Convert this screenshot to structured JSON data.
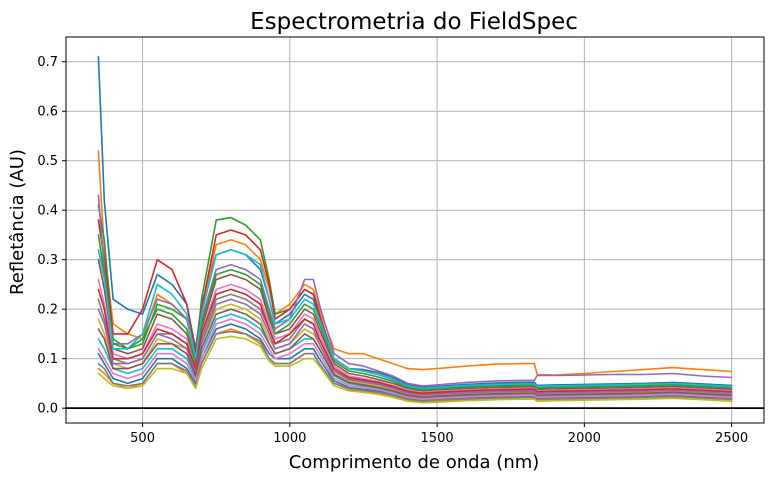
{
  "chart_data": {
    "type": "line",
    "title": "Espectrometria do FieldSpec",
    "xlabel": "Comprimento de onda (nm)",
    "ylabel": "Refletância (AU)",
    "xlim": [
      240,
      2610
    ],
    "ylim": [
      -0.03,
      0.75
    ],
    "xticks": [
      500,
      1000,
      1500,
      2000,
      2500
    ],
    "yticks": [
      0.0,
      0.1,
      0.2,
      0.3,
      0.4,
      0.5,
      0.6,
      0.7
    ],
    "xtick_labels": [
      "500",
      "1000",
      "1500",
      "2000",
      "2500"
    ],
    "ytick_labels": [
      "0.0",
      "0.1",
      "0.2",
      "0.3",
      "0.4",
      "0.5",
      "0.6",
      "0.7"
    ],
    "grid": true,
    "horizontal_reference_line": {
      "y": 0.0,
      "color": "#000000"
    },
    "colors": [
      "#1f77b4",
      "#ff7f0e",
      "#2ca02c",
      "#d62728",
      "#9467bd",
      "#8c564b",
      "#e377c2",
      "#7f7f7f",
      "#bcbd22",
      "#17becf"
    ],
    "x": [
      350,
      370,
      400,
      450,
      500,
      550,
      600,
      650,
      680,
      700,
      750,
      800,
      850,
      900,
      930,
      950,
      1000,
      1050,
      1080,
      1100,
      1150,
      1200,
      1250,
      1300,
      1350,
      1400,
      1450,
      1500,
      1600,
      1700,
      1800,
      1830,
      1840,
      1900,
      2000,
      2100,
      2200,
      2300,
      2400,
      2500
    ],
    "series": [
      {
        "values": [
          0.71,
          0.42,
          0.22,
          0.2,
          0.19,
          0.27,
          0.25,
          0.21,
          0.12,
          0.21,
          0.31,
          0.32,
          0.31,
          0.28,
          0.22,
          0.17,
          0.19,
          0.23,
          0.22,
          0.18,
          0.1,
          0.08,
          0.078,
          0.072,
          0.062,
          0.048,
          0.042,
          0.044,
          0.048,
          0.051,
          0.052,
          0.052,
          0.046,
          0.047,
          0.048,
          0.049,
          0.05,
          0.052,
          0.049,
          0.046
        ]
      },
      {
        "values": [
          0.52,
          0.32,
          0.17,
          0.15,
          0.14,
          0.23,
          0.21,
          0.18,
          0.11,
          0.2,
          0.33,
          0.34,
          0.33,
          0.3,
          0.24,
          0.19,
          0.21,
          0.25,
          0.24,
          0.2,
          0.12,
          0.11,
          0.11,
          0.1,
          0.09,
          0.08,
          0.078,
          0.08,
          0.085,
          0.089,
          0.09,
          0.09,
          0.068,
          0.067,
          0.07,
          0.074,
          0.078,
          0.082,
          0.078,
          0.074
        ]
      },
      {
        "values": [
          0.41,
          0.34,
          0.14,
          0.12,
          0.13,
          0.21,
          0.2,
          0.18,
          0.1,
          0.22,
          0.38,
          0.385,
          0.37,
          0.34,
          0.26,
          0.19,
          0.2,
          0.24,
          0.23,
          0.19,
          0.1,
          0.08,
          0.075,
          0.068,
          0.058,
          0.045,
          0.04,
          0.042,
          0.046,
          0.048,
          0.049,
          0.049,
          0.044,
          0.045,
          0.046,
          0.047,
          0.048,
          0.05,
          0.047,
          0.044
        ]
      },
      {
        "values": [
          0.38,
          0.3,
          0.15,
          0.15,
          0.2,
          0.3,
          0.28,
          0.21,
          0.11,
          0.2,
          0.35,
          0.36,
          0.35,
          0.32,
          0.25,
          0.18,
          0.2,
          0.24,
          0.23,
          0.19,
          0.1,
          0.08,
          0.075,
          0.068,
          0.058,
          0.045,
          0.04,
          0.042,
          0.046,
          0.048,
          0.049,
          0.049,
          0.044,
          0.045,
          0.046,
          0.047,
          0.048,
          0.05,
          0.047,
          0.044
        ]
      },
      {
        "values": [
          0.43,
          0.28,
          0.13,
          0.13,
          0.15,
          0.22,
          0.21,
          0.18,
          0.1,
          0.18,
          0.28,
          0.29,
          0.28,
          0.26,
          0.2,
          0.16,
          0.18,
          0.26,
          0.26,
          0.21,
          0.11,
          0.09,
          0.085,
          0.075,
          0.065,
          0.05,
          0.045,
          0.047,
          0.052,
          0.055,
          0.056,
          0.056,
          0.066,
          0.066,
          0.067,
          0.068,
          0.068,
          0.07,
          0.065,
          0.062
        ]
      },
      {
        "values": [
          0.3,
          0.24,
          0.12,
          0.11,
          0.12,
          0.19,
          0.18,
          0.15,
          0.09,
          0.16,
          0.26,
          0.27,
          0.26,
          0.24,
          0.18,
          0.15,
          0.16,
          0.2,
          0.19,
          0.16,
          0.09,
          0.07,
          0.065,
          0.058,
          0.05,
          0.04,
          0.035,
          0.037,
          0.04,
          0.042,
          0.043,
          0.043,
          0.038,
          0.039,
          0.04,
          0.041,
          0.042,
          0.044,
          0.041,
          0.038
        ]
      },
      {
        "values": [
          0.26,
          0.21,
          0.11,
          0.1,
          0.11,
          0.17,
          0.16,
          0.14,
          0.08,
          0.15,
          0.24,
          0.25,
          0.24,
          0.22,
          0.17,
          0.14,
          0.15,
          0.19,
          0.18,
          0.15,
          0.085,
          0.065,
          0.06,
          0.054,
          0.046,
          0.036,
          0.032,
          0.034,
          0.037,
          0.039,
          0.04,
          0.04,
          0.035,
          0.036,
          0.037,
          0.038,
          0.039,
          0.041,
          0.038,
          0.035
        ]
      },
      {
        "values": [
          0.22,
          0.18,
          0.1,
          0.09,
          0.1,
          0.15,
          0.15,
          0.13,
          0.075,
          0.14,
          0.22,
          0.23,
          0.22,
          0.2,
          0.16,
          0.13,
          0.14,
          0.18,
          0.17,
          0.14,
          0.08,
          0.06,
          0.055,
          0.05,
          0.042,
          0.032,
          0.028,
          0.03,
          0.033,
          0.035,
          0.036,
          0.036,
          0.031,
          0.032,
          0.033,
          0.034,
          0.035,
          0.037,
          0.034,
          0.031
        ]
      },
      {
        "values": [
          0.18,
          0.15,
          0.09,
          0.08,
          0.09,
          0.14,
          0.13,
          0.12,
          0.07,
          0.13,
          0.2,
          0.21,
          0.2,
          0.18,
          0.14,
          0.12,
          0.13,
          0.16,
          0.15,
          0.13,
          0.07,
          0.055,
          0.05,
          0.045,
          0.038,
          0.028,
          0.024,
          0.026,
          0.029,
          0.031,
          0.032,
          0.032,
          0.028,
          0.029,
          0.03,
          0.031,
          0.032,
          0.034,
          0.031,
          0.028
        ]
      },
      {
        "values": [
          0.14,
          0.12,
          0.08,
          0.07,
          0.08,
          0.12,
          0.12,
          0.1,
          0.06,
          0.11,
          0.18,
          0.19,
          0.18,
          0.16,
          0.13,
          0.11,
          0.12,
          0.14,
          0.14,
          0.12,
          0.065,
          0.05,
          0.045,
          0.04,
          0.033,
          0.024,
          0.02,
          0.022,
          0.025,
          0.027,
          0.028,
          0.028,
          0.024,
          0.025,
          0.026,
          0.027,
          0.028,
          0.03,
          0.027,
          0.024
        ]
      },
      {
        "values": [
          0.11,
          0.09,
          0.06,
          0.05,
          0.06,
          0.1,
          0.1,
          0.08,
          0.05,
          0.1,
          0.16,
          0.17,
          0.16,
          0.14,
          0.11,
          0.1,
          0.1,
          0.12,
          0.12,
          0.1,
          0.055,
          0.042,
          0.038,
          0.034,
          0.028,
          0.02,
          0.016,
          0.018,
          0.021,
          0.023,
          0.024,
          0.024,
          0.02,
          0.021,
          0.022,
          0.023,
          0.024,
          0.026,
          0.023,
          0.02
        ]
      },
      {
        "values": [
          0.08,
          0.07,
          0.05,
          0.04,
          0.05,
          0.09,
          0.09,
          0.07,
          0.04,
          0.09,
          0.15,
          0.16,
          0.15,
          0.13,
          0.1,
          0.09,
          0.09,
          0.11,
          0.11,
          0.09,
          0.05,
          0.038,
          0.034,
          0.03,
          0.024,
          0.016,
          0.012,
          0.014,
          0.017,
          0.019,
          0.02,
          0.02,
          0.016,
          0.017,
          0.018,
          0.019,
          0.02,
          0.022,
          0.019,
          0.016
        ]
      },
      {
        "values": [
          0.35,
          0.27,
          0.13,
          0.12,
          0.14,
          0.2,
          0.19,
          0.16,
          0.09,
          0.17,
          0.27,
          0.28,
          0.27,
          0.25,
          0.19,
          0.15,
          0.17,
          0.21,
          0.2,
          0.17,
          0.095,
          0.075,
          0.07,
          0.063,
          0.054,
          0.042,
          0.037,
          0.039,
          0.043,
          0.045,
          0.046,
          0.046,
          0.041,
          0.042,
          0.043,
          0.044,
          0.045,
          0.047,
          0.044,
          0.041
        ]
      },
      {
        "values": [
          0.24,
          0.2,
          0.1,
          0.1,
          0.11,
          0.16,
          0.15,
          0.13,
          0.08,
          0.15,
          0.23,
          0.24,
          0.23,
          0.21,
          0.16,
          0.13,
          0.15,
          0.18,
          0.17,
          0.14,
          0.08,
          0.062,
          0.057,
          0.052,
          0.044,
          0.034,
          0.03,
          0.032,
          0.035,
          0.037,
          0.038,
          0.038,
          0.033,
          0.034,
          0.035,
          0.036,
          0.037,
          0.039,
          0.036,
          0.033
        ]
      },
      {
        "values": [
          0.2,
          0.17,
          0.09,
          0.09,
          0.1,
          0.15,
          0.14,
          0.12,
          0.07,
          0.13,
          0.21,
          0.22,
          0.21,
          0.19,
          0.15,
          0.12,
          0.13,
          0.17,
          0.16,
          0.13,
          0.075,
          0.058,
          0.053,
          0.048,
          0.04,
          0.03,
          0.026,
          0.028,
          0.031,
          0.033,
          0.034,
          0.034,
          0.03,
          0.031,
          0.032,
          0.033,
          0.034,
          0.036,
          0.033,
          0.03
        ]
      },
      {
        "values": [
          0.16,
          0.14,
          0.08,
          0.08,
          0.09,
          0.13,
          0.13,
          0.11,
          0.065,
          0.12,
          0.19,
          0.2,
          0.19,
          0.17,
          0.13,
          0.11,
          0.12,
          0.15,
          0.14,
          0.12,
          0.068,
          0.052,
          0.047,
          0.042,
          0.035,
          0.026,
          0.022,
          0.024,
          0.027,
          0.029,
          0.03,
          0.03,
          0.026,
          0.027,
          0.028,
          0.029,
          0.03,
          0.032,
          0.029,
          0.026
        ]
      },
      {
        "values": [
          0.12,
          0.1,
          0.07,
          0.06,
          0.07,
          0.11,
          0.11,
          0.09,
          0.055,
          0.1,
          0.17,
          0.18,
          0.17,
          0.15,
          0.12,
          0.1,
          0.11,
          0.13,
          0.13,
          0.11,
          0.06,
          0.046,
          0.042,
          0.037,
          0.03,
          0.022,
          0.018,
          0.02,
          0.023,
          0.025,
          0.026,
          0.026,
          0.022,
          0.023,
          0.024,
          0.025,
          0.026,
          0.028,
          0.025,
          0.022
        ]
      },
      {
        "values": [
          0.09,
          0.08,
          0.05,
          0.045,
          0.05,
          0.09,
          0.09,
          0.075,
          0.045,
          0.09,
          0.15,
          0.155,
          0.15,
          0.135,
          0.1,
          0.09,
          0.09,
          0.11,
          0.11,
          0.09,
          0.05,
          0.04,
          0.036,
          0.032,
          0.026,
          0.018,
          0.014,
          0.016,
          0.019,
          0.021,
          0.022,
          0.022,
          0.018,
          0.019,
          0.02,
          0.021,
          0.022,
          0.024,
          0.021,
          0.018
        ]
      },
      {
        "values": [
          0.07,
          0.06,
          0.045,
          0.04,
          0.045,
          0.08,
          0.08,
          0.07,
          0.04,
          0.08,
          0.14,
          0.145,
          0.14,
          0.125,
          0.095,
          0.085,
          0.085,
          0.1,
          0.1,
          0.085,
          0.045,
          0.035,
          0.032,
          0.028,
          0.022,
          0.014,
          0.011,
          0.012,
          0.015,
          0.017,
          0.018,
          0.018,
          0.014,
          0.015,
          0.016,
          0.017,
          0.018,
          0.02,
          0.017,
          0.014
        ]
      },
      {
        "values": [
          0.32,
          0.26,
          0.12,
          0.12,
          0.15,
          0.25,
          0.23,
          0.19,
          0.1,
          0.19,
          0.31,
          0.32,
          0.31,
          0.29,
          0.22,
          0.17,
          0.18,
          0.22,
          0.21,
          0.18,
          0.1,
          0.08,
          0.075,
          0.068,
          0.058,
          0.045,
          0.04,
          0.042,
          0.046,
          0.048,
          0.049,
          0.049,
          0.044,
          0.045,
          0.046,
          0.047,
          0.048,
          0.05,
          0.047,
          0.044
        ]
      }
    ]
  }
}
